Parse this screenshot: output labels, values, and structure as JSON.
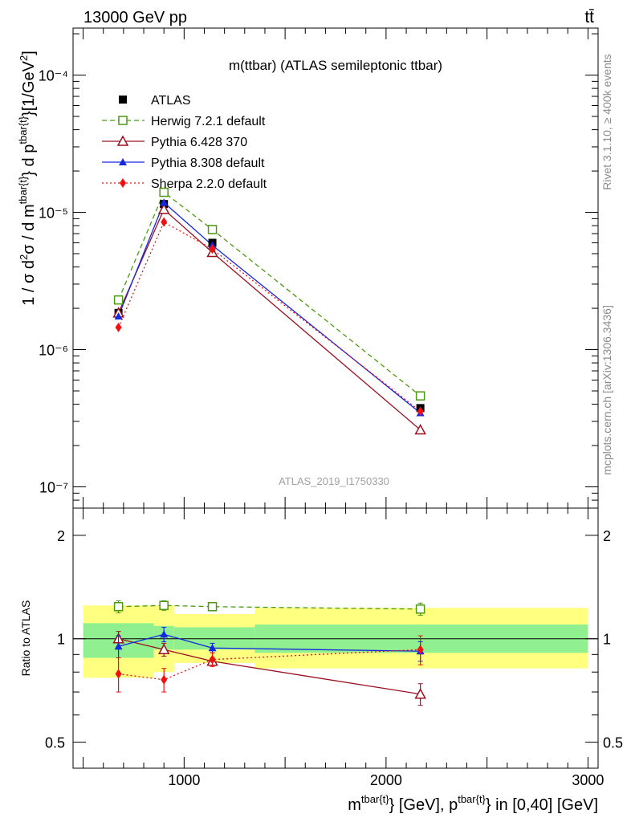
{
  "header": {
    "left": "13000 GeV pp",
    "right": "tt̄"
  },
  "side_labels": {
    "rivet": "Rivet 3.1.10, ≥ 400k events",
    "mcplots": "mcplots.cern.ch [arXiv:1306.3436]"
  },
  "chart_data": [
    {
      "type": "line",
      "title": "m(ttbar) (ATLAS semileptonic ttbar)",
      "analysis_id": "ATLAS_2019_I1750330",
      "ylabel": "1 / σ d²σ / d m^{tbar{t}} d p_T^{tbar{t}} [1/GeV²]",
      "y_scale": "log",
      "ylim": [
        7e-08,
        0.00022
      ],
      "xlim": [
        450,
        3050
      ],
      "yticks": [
        {
          "value": 1e-07,
          "label": "10⁻⁷"
        },
        {
          "value": 1e-06,
          "label": "10⁻⁶"
        },
        {
          "value": 1e-05,
          "label": "10⁻⁵"
        },
        {
          "value": 0.0001,
          "label": "10⁻⁴"
        }
      ],
      "legend_placement": "top-left",
      "series": [
        {
          "name": "ATLAS",
          "key": "atlas",
          "color": "#000000",
          "marker": "square-filled",
          "line": "none",
          "x": [
            675,
            900,
            1140,
            2170
          ],
          "y": [
            1.85e-06,
            1.15e-05,
            6e-06,
            3.75e-07
          ]
        },
        {
          "name": "Herwig 7.2.1 default",
          "key": "herwig",
          "color": "#4b9a10",
          "marker": "square-open",
          "line": "dashed",
          "x": [
            675,
            900,
            1140,
            2170
          ],
          "y": [
            2.3e-06,
            1.4e-05,
            7.5e-06,
            4.6e-07
          ]
        },
        {
          "name": "Pythia 6.428 370",
          "key": "py6",
          "color": "#9a1020",
          "marker": "triangle-open",
          "line": "solid",
          "x": [
            675,
            900,
            1140,
            2170
          ],
          "y": [
            1.85e-06,
            1.05e-05,
            5.1e-06,
            2.6e-07
          ]
        },
        {
          "name": "Pythia 8.308 default",
          "key": "py8",
          "color": "#1428e0",
          "marker": "triangle-filled",
          "line": "solid",
          "x": [
            675,
            900,
            1140,
            2170
          ],
          "y": [
            1.75e-06,
            1.18e-05,
            5.75e-06,
            3.45e-07
          ]
        },
        {
          "name": "Sherpa 2.2.0 default",
          "key": "sherpa",
          "color": "#f01010",
          "marker": "diamond-filled",
          "line": "dotted",
          "x": [
            675,
            900,
            1140,
            2170
          ],
          "y": [
            1.45e-06,
            8.5e-06,
            5.4e-06,
            3.55e-07
          ]
        }
      ]
    },
    {
      "type": "line",
      "ylabel": "Ratio to ATLAS",
      "xlabel": "m^{tbar{t}} [GeV], p_T^{tbar{t}} in [0,40] [GeV]",
      "y_scale": "log",
      "ylim": [
        0.42,
        2.4
      ],
      "xlim": [
        450,
        3050
      ],
      "xticks": [
        1000,
        2000,
        3000
      ],
      "yticks": [
        {
          "value": 0.5,
          "label": "0.5"
        },
        {
          "value": 1,
          "label": "1"
        },
        {
          "value": 2,
          "label": "2"
        }
      ],
      "bands": [
        {
          "x0": 500,
          "x1": 850,
          "stat_lo": 0.88,
          "stat_hi": 1.11,
          "tot_lo": 0.77,
          "tot_hi": 1.25
        },
        {
          "x0": 850,
          "x1": 950,
          "stat_lo": 0.93,
          "stat_hi": 1.09,
          "tot_lo": 0.8,
          "tot_hi": 1.25
        },
        {
          "x0": 950,
          "x1": 1350,
          "stat_lo": 0.93,
          "stat_hi": 1.08,
          "tot_lo": 0.85,
          "tot_hi": 1.18
        },
        {
          "x0": 1350,
          "x1": 3000,
          "stat_lo": 0.91,
          "stat_hi": 1.1,
          "tot_lo": 0.82,
          "tot_hi": 1.23
        }
      ],
      "series": [
        {
          "name": "Herwig 7.2.1 default",
          "key": "herwig",
          "x": [
            675,
            900,
            1140,
            2170
          ],
          "y": [
            1.24,
            1.25,
            1.24,
            1.22
          ],
          "err": [
            0.05,
            0.04,
            0.02,
            0.05
          ]
        },
        {
          "name": "Pythia 6.428 370",
          "key": "py6",
          "x": [
            675,
            900,
            1140,
            2170
          ],
          "y": [
            1.0,
            0.93,
            0.86,
            0.69
          ],
          "err": [
            0.05,
            0.04,
            0.02,
            0.05
          ]
        },
        {
          "name": "Pythia 8.308 default",
          "key": "py8",
          "x": [
            675,
            900,
            1140,
            2170
          ],
          "y": [
            0.95,
            1.03,
            0.94,
            0.92
          ],
          "err": [
            0.07,
            0.05,
            0.03,
            0.06
          ]
        },
        {
          "name": "Sherpa 2.2.0 default",
          "key": "sherpa",
          "x": [
            675,
            900,
            1140,
            2170
          ],
          "y": [
            0.79,
            0.76,
            0.87,
            0.93
          ],
          "err": [
            0.09,
            0.06,
            0.04,
            0.09
          ]
        }
      ]
    }
  ]
}
